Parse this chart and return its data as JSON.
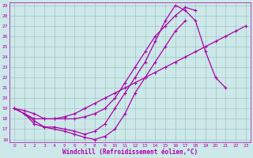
{
  "xlabel": "Windchill (Refroidissement éolien,°C)",
  "xlim": [
    0,
    23
  ],
  "ylim": [
    16,
    29
  ],
  "bg_color": "#cce8e8",
  "line_color": "#aa00aa",
  "grid_color": "#99bbbb",
  "lines": [
    {
      "x": [
        0,
        1,
        2,
        3,
        4,
        5,
        6,
        7,
        8,
        9,
        10,
        11,
        12,
        13,
        14,
        15,
        16,
        17
      ],
      "y": [
        19,
        18.5,
        17.8,
        17.2,
        17.0,
        16.8,
        16.5,
        16.2,
        16.0,
        16.3,
        17.0,
        18.5,
        20.5,
        22.0,
        23.5,
        25.0,
        26.5,
        27.5
      ]
    },
    {
      "x": [
        0,
        1,
        2,
        3,
        4,
        5,
        6,
        7,
        8,
        9,
        10,
        11,
        12,
        13,
        14,
        15,
        16,
        17,
        18
      ],
      "y": [
        19.0,
        18.8,
        18.5,
        18.0,
        18.0,
        18.0,
        18.0,
        18.2,
        18.5,
        19.0,
        20.0,
        21.5,
        23.0,
        24.5,
        26.0,
        27.0,
        28.0,
        28.8,
        28.5
      ]
    },
    {
      "x": [
        0,
        1,
        2,
        3,
        4,
        5,
        6,
        7,
        8,
        9,
        10,
        11,
        12,
        13,
        14,
        15,
        16,
        17,
        18,
        19,
        20,
        21,
        22,
        23
      ],
      "y": [
        19.0,
        18.5,
        18.0,
        18.0,
        18.0,
        18.2,
        18.5,
        19.0,
        19.5,
        20.0,
        20.5,
        21.0,
        21.5,
        22.0,
        22.5,
        23.0,
        23.5,
        24.0,
        24.5,
        25.0,
        25.5,
        26.0,
        26.5,
        27.0
      ]
    },
    {
      "x": [
        1,
        2,
        3,
        4,
        5,
        6,
        7,
        8,
        9,
        10,
        11,
        12,
        13,
        14,
        15,
        16,
        17,
        18,
        19,
        20,
        21
      ],
      "y": [
        18.5,
        17.5,
        17.2,
        17.2,
        17.0,
        16.8,
        16.5,
        16.8,
        17.5,
        19.0,
        20.5,
        22.0,
        23.5,
        25.5,
        27.5,
        29.0,
        28.5,
        27.5,
        24.5,
        22.0,
        21.0
      ]
    }
  ]
}
